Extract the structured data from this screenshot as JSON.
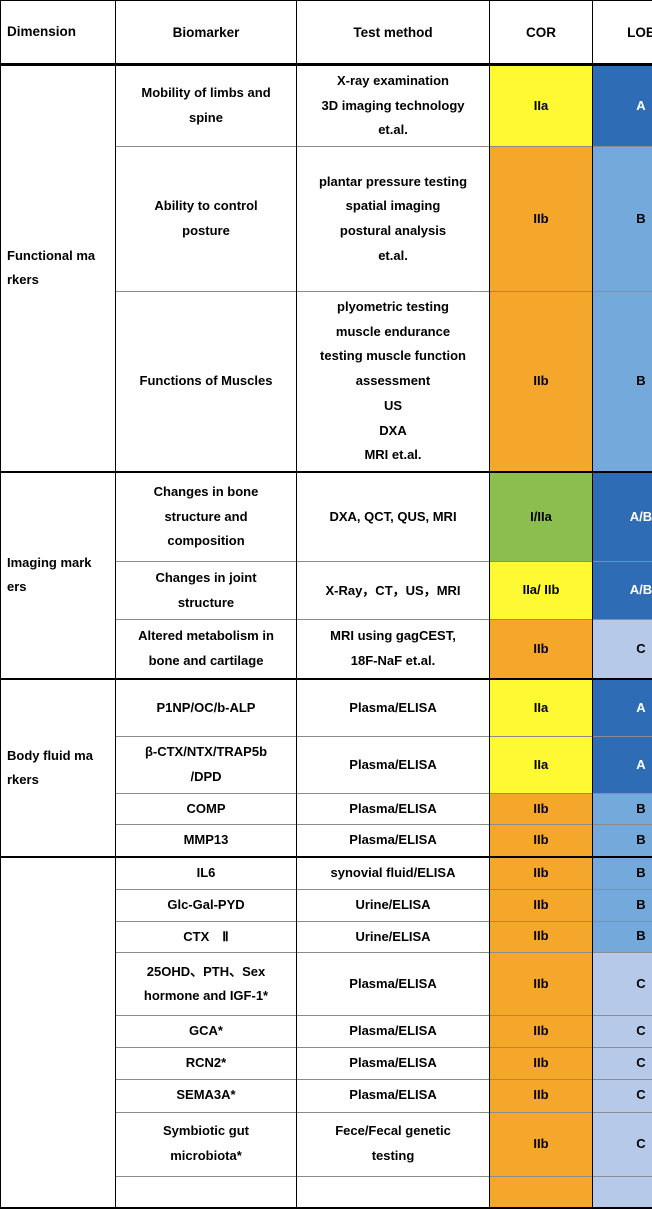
{
  "header": {
    "columns": [
      "Dimension",
      "Biomarker",
      "Test method",
      "COR",
      "LOE"
    ]
  },
  "colors": {
    "cor": {
      "yellow": "#FFF933",
      "orange": "#F5A72B",
      "green": "#8CBE4F"
    },
    "loe": {
      "dark_blue": "#2E6DB5",
      "medium_blue": "#74A9DB",
      "light_blue": "#B6C9E9"
    },
    "text_on_dark": "#FFFFFF",
    "text_default": "#000000"
  },
  "groups": [
    {
      "dimension": "Functional markers",
      "rows": [
        {
          "biomarker": "Mobility of limbs and\nspine",
          "test_method": "X-ray examination\n3D imaging technology\net.al.",
          "cor": "IIa",
          "cor_style": "yellow",
          "loe": "A",
          "loe_style": "dark_blue"
        },
        {
          "biomarker": "Ability to control\nposture",
          "test_method": "plantar pressure testing\nspatial imaging\npostural analysis\net.al.",
          "cor": "IIb",
          "cor_style": "orange",
          "loe": "B",
          "loe_style": "medium_blue"
        },
        {
          "biomarker": "Functions of Muscles",
          "test_method": "plyometric testing\nmuscle endurance\ntesting muscle function\nassessment\nUS\nDXA\nMRI et.al.",
          "cor": "IIb",
          "cor_style": "orange",
          "loe": "B",
          "loe_style": "medium_blue"
        }
      ]
    },
    {
      "dimension": "Imaging markers",
      "rows": [
        {
          "biomarker": "Changes in bone\nstructure and\ncomposition",
          "test_method": "DXA, QCT, QUS, MRI",
          "cor": "I/IIa",
          "cor_style": "green",
          "loe": "A/B",
          "loe_style": "dark_blue"
        },
        {
          "biomarker": "Changes in joint\nstructure",
          "test_method": "X-Ray，CT，US，MRI",
          "cor": "IIa/ IIb",
          "cor_style": "yellow",
          "loe": "A/B",
          "loe_style": "dark_blue"
        },
        {
          "biomarker": "Altered metabolism in\nbone and cartilage",
          "test_method": "MRI using gagCEST,\n18F-NaF et.al.",
          "cor": "IIb",
          "cor_style": "orange",
          "loe": "C",
          "loe_style": "light_blue"
        }
      ]
    },
    {
      "dimension": "Body fluid markers",
      "rows": [
        {
          "biomarker": "P1NP/OC/b-ALP",
          "test_method": "Plasma/ELISA",
          "cor": "IIa",
          "cor_style": "yellow",
          "loe": "A",
          "loe_style": "dark_blue"
        },
        {
          "biomarker": "β-CTX/NTX/TRAP5b\n/DPD",
          "test_method": "Plasma/ELISA",
          "cor": "IIa",
          "cor_style": "yellow",
          "loe": "A",
          "loe_style": "dark_blue"
        },
        {
          "biomarker": "COMP",
          "test_method": "Plasma/ELISA",
          "cor": "IIb",
          "cor_style": "orange",
          "loe": "B",
          "loe_style": "medium_blue"
        },
        {
          "biomarker": "MMP13",
          "test_method": "Plasma/ELISA",
          "cor": "IIb",
          "cor_style": "orange",
          "loe": "B",
          "loe_style": "medium_blue"
        }
      ]
    },
    {
      "dimension": "",
      "rows": [
        {
          "biomarker": "IL6",
          "test_method": "synovial fluid/ELISA",
          "cor": "IIb",
          "cor_style": "orange",
          "loe": "B",
          "loe_style": "medium_blue"
        },
        {
          "biomarker": "Glc-Gal-PYD",
          "test_method": "Urine/ELISA",
          "cor": "IIb",
          "cor_style": "orange",
          "loe": "B",
          "loe_style": "medium_blue"
        },
        {
          "biomarker": "CTX　Ⅱ",
          "test_method": "Urine/ELISA",
          "cor": "IIb",
          "cor_style": "orange",
          "loe": "B",
          "loe_style": "medium_blue"
        },
        {
          "biomarker": "25OHD、PTH、Sex\nhormone and IGF-1*",
          "test_method": "Plasma/ELISA",
          "cor": "IIb",
          "cor_style": "orange",
          "loe": "C",
          "loe_style": "light_blue"
        },
        {
          "biomarker": "GCA*",
          "test_method": "Plasma/ELISA",
          "cor": "IIb",
          "cor_style": "orange",
          "loe": "C",
          "loe_style": "light_blue"
        },
        {
          "biomarker": "RCN2*",
          "test_method": "Plasma/ELISA",
          "cor": "IIb",
          "cor_style": "orange",
          "loe": "C",
          "loe_style": "light_blue"
        },
        {
          "biomarker": "SEMA3A*",
          "test_method": "Plasma/ELISA",
          "cor": "IIb",
          "cor_style": "orange",
          "loe": "C",
          "loe_style": "light_blue"
        },
        {
          "biomarker": "Symbiotic gut\nmicrobiota*",
          "test_method": "Fece/Fecal genetic\ntesting",
          "cor": "IIb",
          "cor_style": "orange",
          "loe": "C",
          "loe_style": "light_blue"
        },
        {
          "biomarker": "",
          "test_method": "",
          "cor": "",
          "cor_style": "orange",
          "loe": "",
          "loe_style": "light_blue"
        }
      ]
    }
  ]
}
